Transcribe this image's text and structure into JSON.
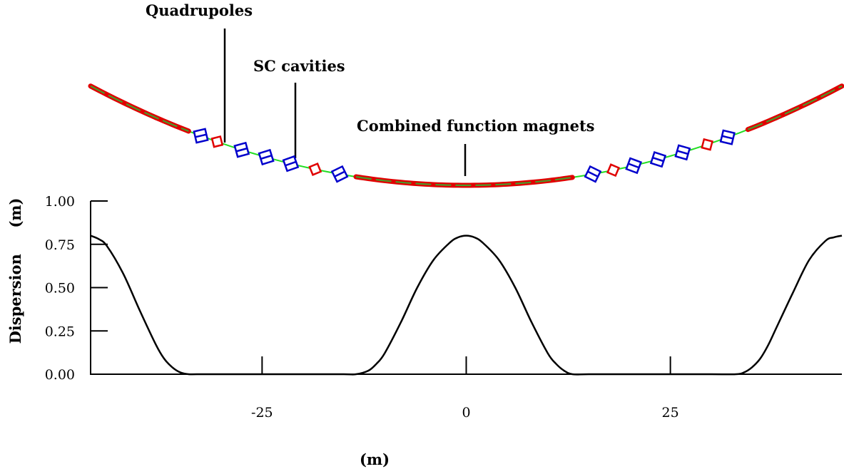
{
  "annotations": {
    "quadrupoles": "Quadrupoles",
    "sc_cavities": "SC cavities",
    "magnets": "Combined function magnets"
  },
  "colors": {
    "magnet": "#e00000",
    "beam_pipe": "#22dd22",
    "cavity": "#0000cc",
    "quadrupole": "#e00000",
    "curve": "#000000"
  },
  "lattice": {
    "magnet_arcs": [
      [
        -46,
        -34
      ],
      [
        -13.5,
        13
      ],
      [
        34.5,
        46
      ]
    ],
    "cavity_positions": [
      -32.5,
      -27.5,
      -24.5,
      -21.5,
      -15.5,
      15.5,
      20.5,
      23.5,
      26.5,
      32
    ],
    "quadrupole_positions": [
      -30.5,
      -18.5,
      18,
      29.5
    ]
  },
  "chart_data": {
    "type": "line",
    "title": "",
    "xlabel": "(m)",
    "ylabel": "Dispersion     (m)",
    "xlim": [
      -46,
      46
    ],
    "ylim": [
      0,
      1
    ],
    "xticks": [
      -25,
      0,
      25
    ],
    "xtick_labels": [
      "-25",
      "0",
      "25"
    ],
    "yticks": [
      0,
      0.25,
      0.5,
      0.75,
      1.0
    ],
    "ytick_labels": [
      "0.00",
      "0.25",
      "0.50",
      "0.75",
      "1.00"
    ],
    "grid": false,
    "series": [
      {
        "x": [
          -46,
          -45,
          -44,
          -42,
          -40,
          -38,
          -37,
          -36,
          -35,
          -34,
          -33,
          -30,
          -25,
          -20,
          -15,
          -13.5,
          -12,
          -11,
          -10,
          -8,
          -6,
          -4,
          -2,
          -1,
          0,
          1,
          2,
          4,
          6,
          8,
          10,
          11,
          12,
          13,
          15,
          20,
          25,
          30,
          33,
          34,
          35,
          36,
          37,
          38,
          40,
          42,
          44,
          45,
          46
        ],
        "y": [
          0.8,
          0.78,
          0.74,
          0.58,
          0.37,
          0.17,
          0.09,
          0.04,
          0.01,
          0.0,
          0.0,
          0.0,
          0.0,
          0.0,
          0.0,
          0.0,
          0.02,
          0.06,
          0.12,
          0.3,
          0.5,
          0.66,
          0.76,
          0.79,
          0.8,
          0.79,
          0.76,
          0.66,
          0.5,
          0.3,
          0.12,
          0.06,
          0.02,
          0.0,
          0.0,
          0.0,
          0.0,
          0.0,
          0.0,
          0.01,
          0.04,
          0.09,
          0.17,
          0.27,
          0.47,
          0.66,
          0.77,
          0.79,
          0.8
        ]
      }
    ]
  }
}
